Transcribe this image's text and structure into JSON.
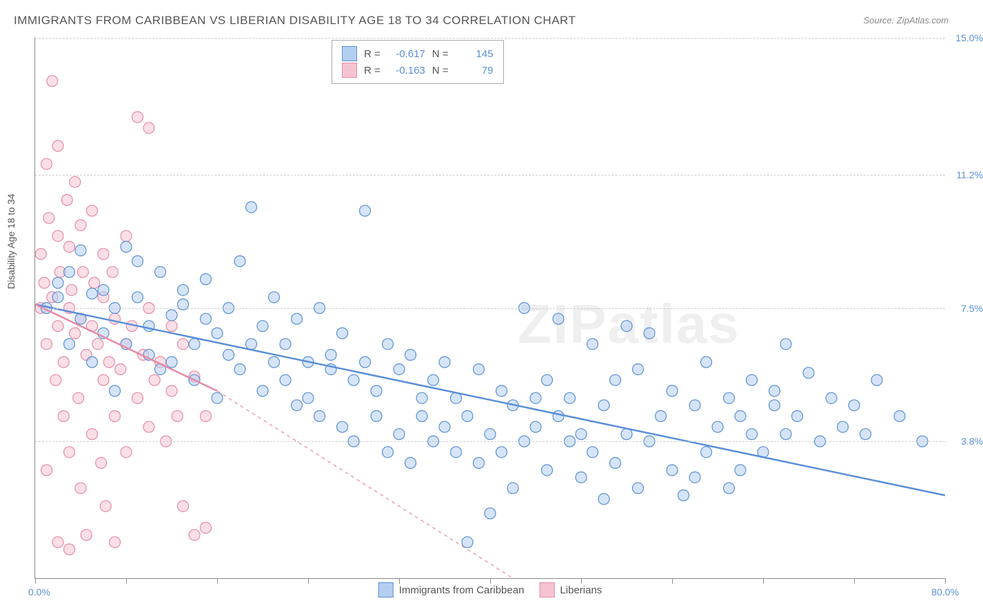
{
  "title": "IMMIGRANTS FROM CARIBBEAN VS LIBERIAN DISABILITY AGE 18 TO 34 CORRELATION CHART",
  "source": "Source: ZipAtlas.com",
  "ylabel": "Disability Age 18 to 34",
  "watermark_zip": "ZIP",
  "watermark_atlas": "atlas",
  "chart": {
    "type": "scatter",
    "xlim": [
      0,
      80
    ],
    "ylim": [
      0,
      15
    ],
    "x_axis_label_min": "0.0%",
    "x_axis_label_max": "80.0%",
    "ytick_values": [
      3.8,
      7.5,
      11.2,
      15.0
    ],
    "ytick_labels": [
      "3.8%",
      "7.5%",
      "11.2%",
      "15.0%"
    ],
    "xtick_values": [
      0,
      8,
      16,
      24,
      32,
      40,
      48,
      56,
      64,
      72,
      80
    ],
    "grid_color": "#cccccc",
    "background_color": "#ffffff",
    "axis_color": "#888888",
    "axis_label_color": "#5b8fd6",
    "text_color": "#555555",
    "marker_radius": 8,
    "marker_stroke_width": 1.2,
    "trend_line_width": 2.5,
    "series": [
      {
        "name": "Immigrants from Caribbean",
        "fill_color": "#b3cef0",
        "stroke_color": "#5b8fd6",
        "fill_opacity": 0.55,
        "correlation_r": "-0.617",
        "correlation_n": "145",
        "trend": {
          "x1": 0,
          "y1": 7.6,
          "x2": 80,
          "y2": 2.3,
          "solid": true
        },
        "dashed_ext": null,
        "points": [
          [
            1,
            7.5
          ],
          [
            2,
            7.8
          ],
          [
            2,
            8.2
          ],
          [
            3,
            6.5
          ],
          [
            3,
            8.5
          ],
          [
            4,
            7.2
          ],
          [
            4,
            9.1
          ],
          [
            5,
            6.0
          ],
          [
            5,
            7.9
          ],
          [
            6,
            8.0
          ],
          [
            6,
            6.8
          ],
          [
            7,
            7.5
          ],
          [
            7,
            5.2
          ],
          [
            8,
            9.2
          ],
          [
            8,
            6.5
          ],
          [
            9,
            7.8
          ],
          [
            9,
            8.8
          ],
          [
            10,
            6.2
          ],
          [
            10,
            7.0
          ],
          [
            11,
            8.5
          ],
          [
            11,
            5.8
          ],
          [
            12,
            7.3
          ],
          [
            12,
            6.0
          ],
          [
            13,
            8.0
          ],
          [
            13,
            7.6
          ],
          [
            14,
            6.5
          ],
          [
            14,
            5.5
          ],
          [
            15,
            7.2
          ],
          [
            15,
            8.3
          ],
          [
            16,
            6.8
          ],
          [
            16,
            5.0
          ],
          [
            17,
            7.5
          ],
          [
            17,
            6.2
          ],
          [
            18,
            8.8
          ],
          [
            18,
            5.8
          ],
          [
            19,
            10.3
          ],
          [
            19,
            6.5
          ],
          [
            20,
            7.0
          ],
          [
            20,
            5.2
          ],
          [
            21,
            6.0
          ],
          [
            21,
            7.8
          ],
          [
            22,
            5.5
          ],
          [
            22,
            6.5
          ],
          [
            23,
            4.8
          ],
          [
            23,
            7.2
          ],
          [
            24,
            6.0
          ],
          [
            24,
            5.0
          ],
          [
            25,
            7.5
          ],
          [
            25,
            4.5
          ],
          [
            26,
            6.2
          ],
          [
            26,
            5.8
          ],
          [
            27,
            4.2
          ],
          [
            27,
            6.8
          ],
          [
            28,
            5.5
          ],
          [
            28,
            3.8
          ],
          [
            29,
            10.2
          ],
          [
            29,
            6.0
          ],
          [
            30,
            5.2
          ],
          [
            30,
            4.5
          ],
          [
            31,
            6.5
          ],
          [
            31,
            3.5
          ],
          [
            32,
            5.8
          ],
          [
            32,
            4.0
          ],
          [
            33,
            6.2
          ],
          [
            33,
            3.2
          ],
          [
            34,
            5.0
          ],
          [
            34,
            4.5
          ],
          [
            35,
            3.8
          ],
          [
            35,
            5.5
          ],
          [
            36,
            4.2
          ],
          [
            36,
            6.0
          ],
          [
            37,
            3.5
          ],
          [
            37,
            5.0
          ],
          [
            38,
            1.0
          ],
          [
            38,
            4.5
          ],
          [
            39,
            5.8
          ],
          [
            39,
            3.2
          ],
          [
            40,
            4.0
          ],
          [
            40,
            1.8
          ],
          [
            41,
            5.2
          ],
          [
            41,
            3.5
          ],
          [
            42,
            4.8
          ],
          [
            42,
            2.5
          ],
          [
            43,
            7.5
          ],
          [
            43,
            3.8
          ],
          [
            44,
            5.0
          ],
          [
            44,
            4.2
          ],
          [
            45,
            3.0
          ],
          [
            45,
            5.5
          ],
          [
            46,
            4.5
          ],
          [
            46,
            7.2
          ],
          [
            47,
            3.8
          ],
          [
            47,
            5.0
          ],
          [
            48,
            4.0
          ],
          [
            48,
            2.8
          ],
          [
            49,
            6.5
          ],
          [
            49,
            3.5
          ],
          [
            50,
            4.8
          ],
          [
            50,
            2.2
          ],
          [
            51,
            5.5
          ],
          [
            51,
            3.2
          ],
          [
            52,
            7.0
          ],
          [
            52,
            4.0
          ],
          [
            53,
            2.5
          ],
          [
            53,
            5.8
          ],
          [
            54,
            3.8
          ],
          [
            54,
            6.8
          ],
          [
            55,
            4.5
          ],
          [
            56,
            3.0
          ],
          [
            56,
            5.2
          ],
          [
            57,
            2.3
          ],
          [
            58,
            4.8
          ],
          [
            58,
            2.8
          ],
          [
            59,
            6.0
          ],
          [
            59,
            3.5
          ],
          [
            60,
            4.2
          ],
          [
            61,
            2.5
          ],
          [
            61,
            5.0
          ],
          [
            62,
            4.5
          ],
          [
            62,
            3.0
          ],
          [
            63,
            5.5
          ],
          [
            63,
            4.0
          ],
          [
            64,
            3.5
          ],
          [
            65,
            4.8
          ],
          [
            65,
            5.2
          ],
          [
            66,
            6.5
          ],
          [
            66,
            4.0
          ],
          [
            67,
            4.5
          ],
          [
            68,
            5.7
          ],
          [
            69,
            3.8
          ],
          [
            70,
            5.0
          ],
          [
            71,
            4.2
          ],
          [
            72,
            4.8
          ],
          [
            73,
            4.0
          ],
          [
            74,
            5.5
          ],
          [
            76,
            4.5
          ],
          [
            78,
            3.8
          ]
        ]
      },
      {
        "name": "Liberians",
        "fill_color": "#f5c4d1",
        "stroke_color": "#e68aa5",
        "fill_opacity": 0.55,
        "correlation_r": "-0.163",
        "correlation_n": "79",
        "trend": {
          "x1": 0,
          "y1": 7.6,
          "x2": 16,
          "y2": 5.2,
          "solid": true
        },
        "dashed_ext": {
          "x1": 16,
          "y1": 5.2,
          "x2": 42,
          "y2": 0
        },
        "points": [
          [
            0.5,
            7.5
          ],
          [
            0.5,
            9.0
          ],
          [
            0.8,
            8.2
          ],
          [
            1,
            11.5
          ],
          [
            1,
            6.5
          ],
          [
            1,
            3.0
          ],
          [
            1.2,
            10.0
          ],
          [
            1.5,
            7.8
          ],
          [
            1.5,
            13.8
          ],
          [
            1.8,
            5.5
          ],
          [
            2,
            9.5
          ],
          [
            2,
            7.0
          ],
          [
            2,
            12.0
          ],
          [
            2,
            1.0
          ],
          [
            2.2,
            8.5
          ],
          [
            2.5,
            6.0
          ],
          [
            2.5,
            4.5
          ],
          [
            2.8,
            10.5
          ],
          [
            3,
            7.5
          ],
          [
            3,
            9.2
          ],
          [
            3,
            3.5
          ],
          [
            3,
            0.8
          ],
          [
            3.2,
            8.0
          ],
          [
            3.5,
            6.8
          ],
          [
            3.5,
            11.0
          ],
          [
            3.8,
            5.0
          ],
          [
            4,
            7.2
          ],
          [
            4,
            9.8
          ],
          [
            4,
            2.5
          ],
          [
            4.2,
            8.5
          ],
          [
            4.5,
            6.2
          ],
          [
            4.5,
            1.2
          ],
          [
            5,
            7.0
          ],
          [
            5,
            4.0
          ],
          [
            5,
            10.2
          ],
          [
            5.2,
            8.2
          ],
          [
            5.5,
            6.5
          ],
          [
            5.8,
            3.2
          ],
          [
            6,
            7.8
          ],
          [
            6,
            5.5
          ],
          [
            6,
            9.0
          ],
          [
            6.2,
            2.0
          ],
          [
            6.5,
            6.0
          ],
          [
            6.8,
            8.5
          ],
          [
            7,
            4.5
          ],
          [
            7,
            7.2
          ],
          [
            7,
            1.0
          ],
          [
            7.5,
            5.8
          ],
          [
            8,
            6.5
          ],
          [
            8,
            3.5
          ],
          [
            8,
            9.5
          ],
          [
            8.5,
            7.0
          ],
          [
            9,
            5.0
          ],
          [
            9,
            12.8
          ],
          [
            9.5,
            6.2
          ],
          [
            10,
            4.2
          ],
          [
            10,
            7.5
          ],
          [
            10,
            12.5
          ],
          [
            10.5,
            5.5
          ],
          [
            11,
            6.0
          ],
          [
            11.5,
            3.8
          ],
          [
            12,
            5.2
          ],
          [
            12,
            7.0
          ],
          [
            12.5,
            4.5
          ],
          [
            13,
            6.5
          ],
          [
            13,
            2.0
          ],
          [
            14,
            5.6
          ],
          [
            14,
            1.2
          ],
          [
            15,
            4.5
          ],
          [
            15,
            1.4
          ]
        ]
      }
    ]
  },
  "legend": {
    "r_label": "R =",
    "n_label": "N ="
  }
}
